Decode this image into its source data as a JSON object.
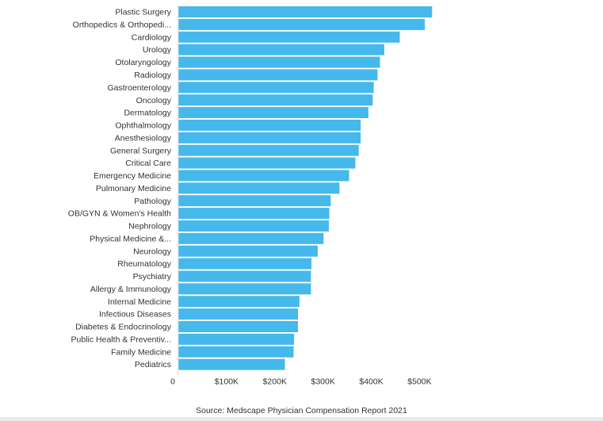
{
  "chart_data": {
    "type": "bar",
    "orientation": "horizontal",
    "categories": [
      "Plastic Surgery",
      "Orthopedics & Orthopedi...",
      "Cardiology",
      "Urology",
      "Otolaryngology",
      "Radiology",
      "Gastroenterology",
      "Oncology",
      "Dermatology",
      "Ophthalmology",
      "Anesthesiology",
      "General Surgery",
      "Critical Care",
      "Emergency Medicine",
      "Pulmonary Medicine",
      "Pathology",
      "OB/GYN & Women's Health",
      "Nephrology",
      "Physical Medicine &...",
      "Neurology",
      "Rheumatology",
      "Psychiatry",
      "Allergy & Immunology",
      "Internal Medicine",
      "Infectious Diseases",
      "Diabetes & Endocrinology",
      "Public Health & Preventiv...",
      "Family Medicine",
      "Pediatrics"
    ],
    "values": [
      526000,
      511000,
      459000,
      427000,
      418000,
      413000,
      405000,
      403000,
      394000,
      378000,
      378000,
      374000,
      367000,
      354000,
      334000,
      316000,
      313000,
      312000,
      301000,
      289000,
      276000,
      275000,
      275000,
      251000,
      248000,
      248000,
      240000,
      239000,
      221000
    ],
    "x_ticks": [
      0,
      100000,
      200000,
      300000,
      400000,
      500000
    ],
    "x_tick_labels": [
      "0",
      "$100K",
      "$200K",
      "$300K",
      "$400K",
      "$500K"
    ],
    "xlim": [
      0,
      560000
    ],
    "xlabel": "",
    "ylabel": "",
    "title": "",
    "grid": false,
    "legend": "none",
    "colors": {
      "bar": "#45b8ec",
      "text": "#333333",
      "axis": "#d9d9d9"
    }
  },
  "source_note": "Source: Medscape Physician Compensation Report 2021"
}
